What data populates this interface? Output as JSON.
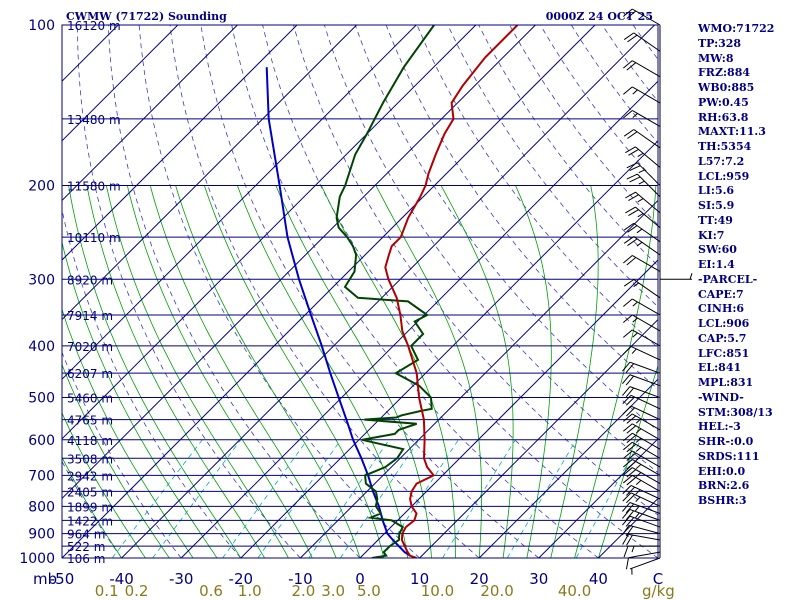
{
  "header": {
    "station": "CWMW (71722) Sounding",
    "time": "0000Z 24 OCT 25"
  },
  "indices": [
    "WMO:71722",
    "TP:328",
    "MW:8",
    "FRZ:884",
    "WB0:885",
    "PW:0.45",
    "RH:63.8",
    "MAXT:11.3",
    "TH:5354",
    "L57:7.2",
    "LCL:959",
    "LI:5.6",
    "SI:5.9",
    "TT:49",
    "KI:7",
    "SW:60",
    "EI:1.4",
    "-PARCEL-",
    "CAPE:7",
    "CINH:6",
    "LCL:906",
    "CAP:5.7",
    "LFC:851",
    "EL:841",
    "MPL:831",
    "-WIND-",
    "STM:308/13",
    "HEL:-3",
    "SHR-:0.0",
    "SRDS:111",
    "EHI:0.0",
    "BRN:2.6",
    "BSHR:3"
  ],
  "colors": {
    "isobar": "#000080",
    "isotherm": "#000080",
    "dry_adiabat": "#3c3cc8",
    "moist_adiabat": "#00a000",
    "mixing_ratio": "#00b0b0",
    "temperature": "#b00000",
    "dewpoint": "#004400",
    "parcel": "#0000c0",
    "wind_barb": "#000000"
  },
  "chart_data": {
    "type": "skew-t",
    "x_axis_unit": "C",
    "xlim": [
      -50,
      50
    ],
    "pressure_range": [
      1000,
      100
    ],
    "pressure_labels": [
      {
        "p": 100,
        "label": "100"
      },
      {
        "p": 200,
        "label": "200"
      },
      {
        "p": 300,
        "label": "300"
      },
      {
        "p": 400,
        "label": "400"
      },
      {
        "p": 500,
        "label": "500"
      },
      {
        "p": 600,
        "label": "600"
      },
      {
        "p": 700,
        "label": "700"
      },
      {
        "p": 800,
        "label": "800"
      },
      {
        "p": 900,
        "label": "900"
      },
      {
        "p": 1000,
        "label": "1000"
      }
    ],
    "pressure_axis_unit": "mb",
    "height_labels": [
      {
        "p": 100,
        "label": "16120 m"
      },
      {
        "p": 150,
        "label": "13480 m"
      },
      {
        "p": 200,
        "label": "11580 m"
      },
      {
        "p": 250,
        "label": "10110 m"
      },
      {
        "p": 300,
        "label": "8920 m"
      },
      {
        "p": 350,
        "label": "7914 m"
      },
      {
        "p": 400,
        "label": "7020 m"
      },
      {
        "p": 450,
        "label": "6207 m"
      },
      {
        "p": 500,
        "label": "5460 m"
      },
      {
        "p": 550,
        "label": "4765 m"
      },
      {
        "p": 600,
        "label": "4118 m"
      },
      {
        "p": 650,
        "label": "3508 m"
      },
      {
        "p": 700,
        "label": "2942 m"
      },
      {
        "p": 750,
        "label": "2405 m"
      },
      {
        "p": 800,
        "label": "1899 m"
      },
      {
        "p": 850,
        "label": "1422 m"
      },
      {
        "p": 900,
        "label": "964 m"
      },
      {
        "p": 950,
        "label": "522 m"
      },
      {
        "p": 1000,
        "label": "106 m"
      }
    ],
    "temperature_ticks": [
      {
        "t": -50,
        "label": "-50"
      },
      {
        "t": -40,
        "label": "-40"
      },
      {
        "t": -30,
        "label": "-30"
      },
      {
        "t": -20,
        "label": "-20"
      },
      {
        "t": -10,
        "label": "-10"
      },
      {
        "t": 0,
        "label": "0"
      },
      {
        "t": 10,
        "label": "10"
      },
      {
        "t": 20,
        "label": "20"
      },
      {
        "t": 30,
        "label": "30"
      },
      {
        "t": 40,
        "label": "40"
      },
      {
        "t": 50,
        "label": "C"
      }
    ],
    "mixing_ratio_ticks": [
      {
        "t": -42.5,
        "label": "0.1"
      },
      {
        "t": -37.5,
        "label": "0.2"
      },
      {
        "t": -25,
        "label": "0.6"
      },
      {
        "t": -18.5,
        "label": "1.0"
      },
      {
        "t": -9.5,
        "label": "2.0"
      },
      {
        "t": -4.5,
        "label": "3.0"
      },
      {
        "t": 1.5,
        "label": "5.0"
      },
      {
        "t": 13,
        "label": "10.0"
      },
      {
        "t": 23,
        "label": "20.0"
      },
      {
        "t": 36,
        "label": "40.0"
      }
    ],
    "mixing_ratio_unit": "g/kg",
    "series": [
      {
        "key": "temperature",
        "points": [
          [
            1000,
            9.5
          ],
          [
            990,
            8.0
          ],
          [
            975,
            7.0
          ],
          [
            950,
            5.5
          ],
          [
            925,
            4.0
          ],
          [
            900,
            3.0
          ],
          [
            875,
            2.5
          ],
          [
            850,
            2.8
          ],
          [
            825,
            2.0
          ],
          [
            800,
            0.0
          ],
          [
            775,
            -1.5
          ],
          [
            750,
            -2.5
          ],
          [
            725,
            -3.0
          ],
          [
            700,
            -1.5
          ],
          [
            675,
            -4.0
          ],
          [
            650,
            -6.0
          ],
          [
            600,
            -9.0
          ],
          [
            550,
            -12.5
          ],
          [
            500,
            -17.0
          ],
          [
            450,
            -21.5
          ],
          [
            400,
            -27.5
          ],
          [
            375,
            -31.0
          ],
          [
            350,
            -34.0
          ],
          [
            325,
            -37.5
          ],
          [
            300,
            -42.0
          ],
          [
            285,
            -44.5
          ],
          [
            270,
            -46.0
          ],
          [
            260,
            -47.0
          ],
          [
            250,
            -47.0
          ],
          [
            230,
            -49.0
          ],
          [
            210,
            -50.5
          ],
          [
            200,
            -51.5
          ],
          [
            190,
            -53.0
          ],
          [
            175,
            -55.0
          ],
          [
            160,
            -57.0
          ],
          [
            150,
            -58.0
          ],
          [
            140,
            -61.0
          ],
          [
            130,
            -62.0
          ],
          [
            115,
            -63.0
          ],
          [
            100,
            -63.0
          ]
        ]
      },
      {
        "key": "dewpoint",
        "points": [
          [
            1000,
            2.0
          ],
          [
            990,
            4.0
          ],
          [
            975,
            3.0
          ],
          [
            950,
            3.0
          ],
          [
            925,
            3.5
          ],
          [
            900,
            2.5
          ],
          [
            875,
            2.0
          ],
          [
            850,
            -1.0
          ],
          [
            840,
            -5.0
          ],
          [
            825,
            -4.0
          ],
          [
            800,
            -6.0
          ],
          [
            775,
            -7.0
          ],
          [
            750,
            -8.5
          ],
          [
            725,
            -11.5
          ],
          [
            700,
            -13.0
          ],
          [
            675,
            -11.0
          ],
          [
            650,
            -10.5
          ],
          [
            625,
            -11.0
          ],
          [
            600,
            -19.5
          ],
          [
            585,
            -15.0
          ],
          [
            575,
            -15.0
          ],
          [
            560,
            -13.0
          ],
          [
            550,
            -22.5
          ],
          [
            545,
            -17.5
          ],
          [
            540,
            -17.0
          ],
          [
            530,
            -14.5
          ],
          [
            525,
            -13.0
          ],
          [
            500,
            -15.0
          ],
          [
            475,
            -19.0
          ],
          [
            450,
            -25.0
          ],
          [
            425,
            -23.5
          ],
          [
            400,
            -27.0
          ],
          [
            380,
            -27.0
          ],
          [
            360,
            -30.5
          ],
          [
            350,
            -29.5
          ],
          [
            330,
            -35.0
          ],
          [
            325,
            -44.0
          ],
          [
            310,
            -48.0
          ],
          [
            290,
            -49.0
          ],
          [
            270,
            -51.5
          ],
          [
            260,
            -53.5
          ],
          [
            250,
            -56.0
          ],
          [
            240,
            -59.0
          ],
          [
            230,
            -61.0
          ],
          [
            210,
            -64.0
          ],
          [
            200,
            -65.0
          ],
          [
            175,
            -68.5
          ],
          [
            160,
            -70.0
          ],
          [
            140,
            -72.5
          ],
          [
            120,
            -75.0
          ],
          [
            100,
            -77.0
          ]
        ]
      },
      {
        "key": "parcel",
        "points": [
          [
            990,
            8.0
          ],
          [
            975,
            6.5
          ],
          [
            950,
            4.5
          ],
          [
            925,
            2.5
          ],
          [
            900,
            0.5
          ],
          [
            850,
            -2.5
          ],
          [
            800,
            -5.5
          ],
          [
            750,
            -9.0
          ],
          [
            700,
            -12.5
          ],
          [
            650,
            -16.5
          ],
          [
            600,
            -21.0
          ],
          [
            550,
            -25.5
          ],
          [
            500,
            -30.5
          ],
          [
            450,
            -36.0
          ],
          [
            400,
            -42.0
          ],
          [
            350,
            -49.0
          ],
          [
            300,
            -57.0
          ],
          [
            250,
            -66.0
          ],
          [
            200,
            -76.0
          ],
          [
            150,
            -89.0
          ],
          [
            120,
            -98.0
          ]
        ]
      }
    ],
    "wind_barbs": [
      {
        "p": 1000,
        "dir": 250,
        "spd": 5
      },
      {
        "p": 975,
        "dir": 260,
        "spd": 10
      },
      {
        "p": 950,
        "dir": 270,
        "spd": 15
      },
      {
        "p": 925,
        "dir": 280,
        "spd": 20
      },
      {
        "p": 900,
        "dir": 285,
        "spd": 20
      },
      {
        "p": 875,
        "dir": 290,
        "spd": 20
      },
      {
        "p": 850,
        "dir": 290,
        "spd": 25
      },
      {
        "p": 825,
        "dir": 290,
        "spd": 25
      },
      {
        "p": 800,
        "dir": 295,
        "spd": 25
      },
      {
        "p": 775,
        "dir": 295,
        "spd": 25
      },
      {
        "p": 750,
        "dir": 300,
        "spd": 25
      },
      {
        "p": 725,
        "dir": 300,
        "spd": 25
      },
      {
        "p": 700,
        "dir": 300,
        "spd": 25
      },
      {
        "p": 675,
        "dir": 300,
        "spd": 25
      },
      {
        "p": 650,
        "dir": 300,
        "spd": 25
      },
      {
        "p": 625,
        "dir": 300,
        "spd": 25
      },
      {
        "p": 600,
        "dir": 300,
        "spd": 25
      },
      {
        "p": 575,
        "dir": 300,
        "spd": 25
      },
      {
        "p": 550,
        "dir": 295,
        "spd": 20
      },
      {
        "p": 525,
        "dir": 295,
        "spd": 20
      },
      {
        "p": 500,
        "dir": 290,
        "spd": 20
      },
      {
        "p": 475,
        "dir": 290,
        "spd": 20
      },
      {
        "p": 450,
        "dir": 290,
        "spd": 20
      },
      {
        "p": 425,
        "dir": 295,
        "spd": 15
      },
      {
        "p": 400,
        "dir": 300,
        "spd": 15
      },
      {
        "p": 375,
        "dir": 300,
        "spd": 15
      },
      {
        "p": 350,
        "dir": 300,
        "spd": 15
      },
      {
        "p": 325,
        "dir": 305,
        "spd": 15
      },
      {
        "p": 300,
        "dir": 90,
        "spd": 5
      },
      {
        "p": 290,
        "dir": 300,
        "spd": 20
      },
      {
        "p": 270,
        "dir": 305,
        "spd": 25
      },
      {
        "p": 255,
        "dir": 305,
        "spd": 25
      },
      {
        "p": 240,
        "dir": 310,
        "spd": 25
      },
      {
        "p": 225,
        "dir": 310,
        "spd": 25
      },
      {
        "p": 210,
        "dir": 315,
        "spd": 25
      },
      {
        "p": 200,
        "dir": 315,
        "spd": 25
      },
      {
        "p": 185,
        "dir": 310,
        "spd": 25
      },
      {
        "p": 170,
        "dir": 305,
        "spd": 20
      },
      {
        "p": 155,
        "dir": 300,
        "spd": 15
      },
      {
        "p": 140,
        "dir": 300,
        "spd": 15
      },
      {
        "p": 125,
        "dir": 300,
        "spd": 20
      },
      {
        "p": 112,
        "dir": 305,
        "spd": 20
      },
      {
        "p": 100,
        "dir": 300,
        "spd": 20
      }
    ]
  }
}
